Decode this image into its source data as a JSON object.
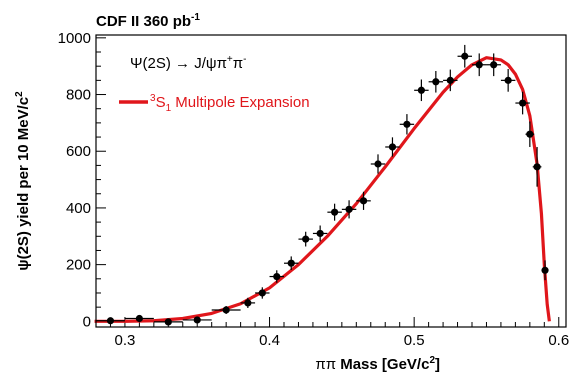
{
  "chart_data": {
    "type": "scatter",
    "header": {
      "prefix": "CDF II  360 pb",
      "superscript": "-1"
    },
    "xlabel": {
      "greek": "ππ",
      "main": " Mass [GeV/c",
      "sup": "2",
      "end": "]"
    },
    "ylabel": {
      "main": "ψ(2S) yield per 10 MeV/c",
      "sup": "2"
    },
    "xlim": [
      0.28,
      0.605
    ],
    "ylim": [
      -20,
      1010
    ],
    "x_ticks": [
      0.3,
      0.4,
      0.5,
      0.6
    ],
    "x_tick_labels": [
      "0.3",
      "0.4",
      "0.5",
      "0.6"
    ],
    "y_ticks": [
      0,
      200,
      400,
      600,
      800,
      1000
    ],
    "y_tick_labels": [
      "0",
      "200",
      "400",
      "600",
      "800",
      "1000"
    ],
    "legend": {
      "position": "top-left",
      "process": {
        "a": "Ψ(2S) → J/ψπ",
        "sup1": "+",
        "b": "π",
        "sup2": "-"
      },
      "model": {
        "pre": "3",
        "s": "S",
        "sub": "1",
        "rest": " Multipole Expansion"
      }
    },
    "colors": {
      "data": "#000000",
      "fit": "#e0161b"
    },
    "series": [
      {
        "points": [
          {
            "x": 0.29,
            "y": 2,
            "xerr": 0.01,
            "yerr": 6
          },
          {
            "x": 0.31,
            "y": 10,
            "xerr": 0.01,
            "yerr": 8
          },
          {
            "x": 0.33,
            "y": -2,
            "xerr": 0.01,
            "yerr": 8
          },
          {
            "x": 0.35,
            "y": 5,
            "xerr": 0.01,
            "yerr": 10
          },
          {
            "x": 0.37,
            "y": 40,
            "xerr": 0.01,
            "yerr": 14
          },
          {
            "x": 0.385,
            "y": 65,
            "xerr": 0.005,
            "yerr": 18
          },
          {
            "x": 0.395,
            "y": 100,
            "xerr": 0.005,
            "yerr": 20
          },
          {
            "x": 0.405,
            "y": 158,
            "xerr": 0.005,
            "yerr": 22
          },
          {
            "x": 0.415,
            "y": 205,
            "xerr": 0.005,
            "yerr": 24
          },
          {
            "x": 0.425,
            "y": 290,
            "xerr": 0.005,
            "yerr": 26
          },
          {
            "x": 0.435,
            "y": 310,
            "xerr": 0.005,
            "yerr": 28
          },
          {
            "x": 0.445,
            "y": 385,
            "xerr": 0.005,
            "yerr": 30
          },
          {
            "x": 0.455,
            "y": 395,
            "xerr": 0.005,
            "yerr": 32
          },
          {
            "x": 0.465,
            "y": 425,
            "xerr": 0.005,
            "yerr": 32
          },
          {
            "x": 0.475,
            "y": 555,
            "xerr": 0.005,
            "yerr": 34
          },
          {
            "x": 0.485,
            "y": 615,
            "xerr": 0.005,
            "yerr": 34
          },
          {
            "x": 0.495,
            "y": 695,
            "xerr": 0.005,
            "yerr": 36
          },
          {
            "x": 0.505,
            "y": 815,
            "xerr": 0.005,
            "yerr": 38
          },
          {
            "x": 0.515,
            "y": 845,
            "xerr": 0.005,
            "yerr": 38
          },
          {
            "x": 0.525,
            "y": 850,
            "xerr": 0.005,
            "yerr": 38
          },
          {
            "x": 0.535,
            "y": 935,
            "xerr": 0.005,
            "yerr": 40
          },
          {
            "x": 0.545,
            "y": 905,
            "xerr": 0.005,
            "yerr": 40
          },
          {
            "x": 0.555,
            "y": 905,
            "xerr": 0.005,
            "yerr": 40
          },
          {
            "x": 0.565,
            "y": 850,
            "xerr": 0.005,
            "yerr": 40
          },
          {
            "x": 0.575,
            "y": 770,
            "xerr": 0.005,
            "yerr": 40
          },
          {
            "x": 0.58,
            "y": 660,
            "xerr": 0.003,
            "yerr": 45
          },
          {
            "x": 0.585,
            "y": 545,
            "xerr": 0.003,
            "yerr": 70
          },
          {
            "x": 0.5905,
            "y": 180,
            "xerr": 0.002,
            "yerr": 35
          }
        ]
      },
      {
        "curve": [
          [
            0.279,
            0
          ],
          [
            0.3,
            0
          ],
          [
            0.32,
            2
          ],
          [
            0.34,
            10
          ],
          [
            0.36,
            28
          ],
          [
            0.38,
            62
          ],
          [
            0.4,
            118
          ],
          [
            0.42,
            200
          ],
          [
            0.44,
            300
          ],
          [
            0.46,
            415
          ],
          [
            0.48,
            545
          ],
          [
            0.5,
            680
          ],
          [
            0.52,
            808
          ],
          [
            0.53,
            862
          ],
          [
            0.54,
            905
          ],
          [
            0.55,
            930
          ],
          [
            0.56,
            922
          ],
          [
            0.565,
            905
          ],
          [
            0.57,
            872
          ],
          [
            0.575,
            818
          ],
          [
            0.58,
            725
          ],
          [
            0.585,
            555
          ],
          [
            0.588,
            380
          ],
          [
            0.59,
            200
          ],
          [
            0.592,
            60
          ],
          [
            0.5935,
            0
          ]
        ]
      }
    ]
  }
}
